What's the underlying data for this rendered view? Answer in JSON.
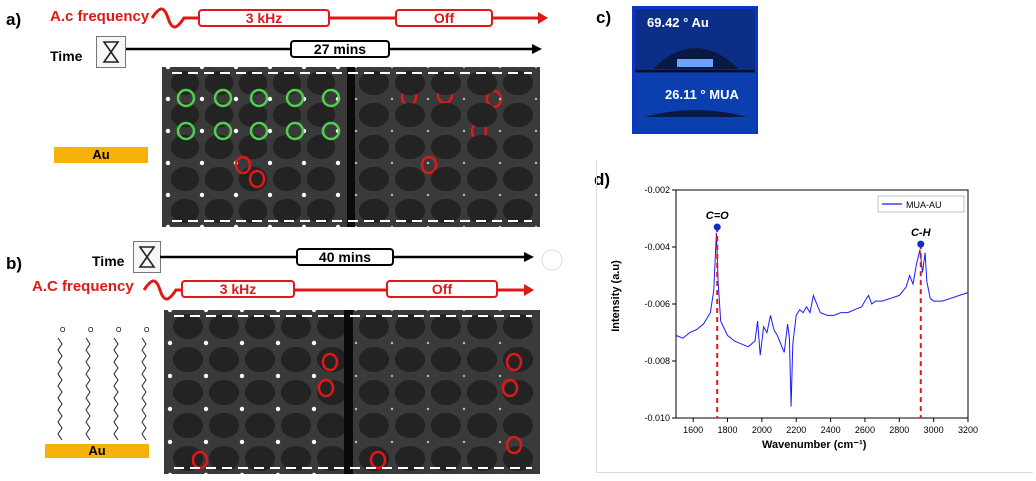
{
  "panels": {
    "a": "a)",
    "b": "b)",
    "c": "c)",
    "d": "d)"
  },
  "panel_a": {
    "ac_label": "A.c frequency",
    "seg1": "3 kHz",
    "seg2": "Off",
    "time_label": "Time",
    "time_value": "27 mins",
    "au_label": "Au"
  },
  "panel_b": {
    "time_label": "Time",
    "time_value": "40 mins",
    "ac_label": "A.C frequency",
    "seg1": "3 kHz",
    "seg2": "Off",
    "au_label": "Au"
  },
  "panel_c": {
    "top_angle": "69.42 ° Au",
    "bottom_angle": "26.11 ° MUA"
  },
  "colors": {
    "red": "#e01818",
    "gold": "#f4b10a",
    "line": "#1a1aff",
    "marker": "#0a2cc8",
    "green": "#4fd04f"
  },
  "chart_data": {
    "type": "line",
    "xlabel": "Wavenumber (cm⁻¹)",
    "ylabel": "Intensity (a.u)",
    "xlim": [
      1500,
      3200
    ],
    "ylim": [
      -0.01,
      -0.002
    ],
    "xticks": [
      "1600",
      "1800",
      "2000",
      "2200",
      "2400",
      "2600",
      "2800",
      "3000",
      "3200"
    ],
    "yticks": [
      "-0.002",
      "-0.004",
      "-0.006",
      "-0.008",
      "-0.010"
    ],
    "legend": "top-right",
    "series": [
      {
        "name": "MUA-AU",
        "x": [
          1500,
          1540,
          1580,
          1620,
          1660,
          1700,
          1720,
          1735,
          1745,
          1760,
          1800,
          1840,
          1880,
          1920,
          1960,
          1975,
          1990,
          2010,
          2030,
          2050,
          2070,
          2090,
          2110,
          2130,
          2150,
          2160,
          2170,
          2180,
          2200,
          2220,
          2240,
          2260,
          2280,
          2300,
          2320,
          2340,
          2380,
          2420,
          2460,
          2500,
          2540,
          2580,
          2620,
          2640,
          2660,
          2700,
          2750,
          2800,
          2840,
          2860,
          2880,
          2900,
          2920,
          2935,
          2950,
          2960,
          2980,
          3000,
          3050,
          3100,
          3150,
          3200
        ],
        "y": [
          -0.0071,
          -0.0072,
          -0.007,
          -0.0069,
          -0.0067,
          -0.0063,
          -0.0055,
          -0.0035,
          -0.0052,
          -0.0066,
          -0.0071,
          -0.0073,
          -0.0074,
          -0.0075,
          -0.0073,
          -0.0066,
          -0.0078,
          -0.0068,
          -0.007,
          -0.0064,
          -0.0069,
          -0.0071,
          -0.0074,
          -0.0077,
          -0.0067,
          -0.0072,
          -0.0096,
          -0.0074,
          -0.0064,
          -0.0062,
          -0.0063,
          -0.0061,
          -0.0063,
          -0.0057,
          -0.006,
          -0.0063,
          -0.0064,
          -0.0064,
          -0.0063,
          -0.0063,
          -0.0062,
          -0.0061,
          -0.0057,
          -0.006,
          -0.0059,
          -0.0059,
          -0.0058,
          -0.0057,
          -0.0054,
          -0.005,
          -0.0053,
          -0.0046,
          -0.0041,
          -0.0049,
          -0.0042,
          -0.0052,
          -0.0058,
          -0.0059,
          -0.0059,
          -0.0058,
          -0.0057,
          -0.0056
        ]
      }
    ],
    "annotations": [
      {
        "label": "C=O",
        "x": 1740,
        "y": -0.0033
      },
      {
        "label": "C-H",
        "x": 2925,
        "y": -0.0039
      }
    ]
  }
}
